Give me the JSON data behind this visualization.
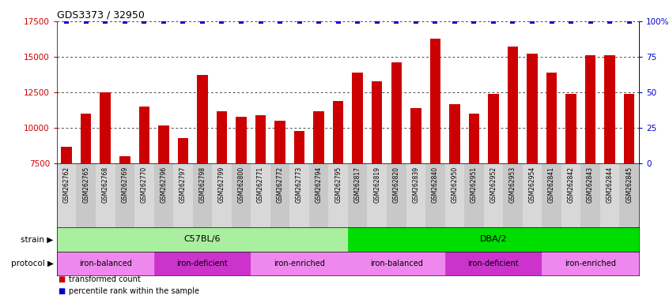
{
  "title": "GDS3373 / 32950",
  "samples": [
    "GSM262762",
    "GSM262765",
    "GSM262768",
    "GSM262769",
    "GSM262770",
    "GSM262796",
    "GSM262797",
    "GSM262798",
    "GSM262799",
    "GSM262800",
    "GSM262771",
    "GSM262772",
    "GSM262773",
    "GSM262794",
    "GSM262795",
    "GSM262817",
    "GSM262819",
    "GSM262820",
    "GSM262839",
    "GSM262840",
    "GSM262950",
    "GSM262951",
    "GSM262952",
    "GSM262953",
    "GSM262954",
    "GSM262841",
    "GSM262842",
    "GSM262843",
    "GSM262844",
    "GSM262845"
  ],
  "bar_values": [
    8700,
    11000,
    12500,
    8000,
    11500,
    10200,
    9300,
    13700,
    11200,
    10800,
    10900,
    10500,
    9800,
    11200,
    11900,
    13900,
    13300,
    14600,
    11400,
    16300,
    11700,
    11000,
    12400,
    15700,
    15200,
    13900,
    12400,
    15100,
    15100,
    12400
  ],
  "bar_color": "#cc0000",
  "percentile_color": "#0000cc",
  "ymin": 7500,
  "ymax": 17500,
  "yticks_left": [
    7500,
    10000,
    12500,
    15000,
    17500
  ],
  "yticks_right": [
    0,
    25,
    50,
    75,
    100
  ],
  "grid_values": [
    10000,
    12500,
    15000,
    17500
  ],
  "strain_groups": [
    {
      "label": "C57BL/6",
      "start": 0,
      "end": 15,
      "color": "#aaeea0"
    },
    {
      "label": "DBA/2",
      "start": 15,
      "end": 30,
      "color": "#00dd00"
    }
  ],
  "protocol_groups": [
    {
      "label": "iron-balanced",
      "start": 0,
      "end": 5,
      "color": "#ee88ee"
    },
    {
      "label": "iron-deficient",
      "start": 5,
      "end": 10,
      "color": "#cc33cc"
    },
    {
      "label": "iron-enriched",
      "start": 10,
      "end": 15,
      "color": "#ee88ee"
    },
    {
      "label": "iron-balanced",
      "start": 15,
      "end": 20,
      "color": "#ee88ee"
    },
    {
      "label": "iron-deficient",
      "start": 20,
      "end": 25,
      "color": "#cc33cc"
    },
    {
      "label": "iron-enriched",
      "start": 25,
      "end": 30,
      "color": "#ee88ee"
    }
  ],
  "strain_label": "strain",
  "protocol_label": "protocol",
  "legend_bar_label": "transformed count",
  "legend_dot_label": "percentile rank within the sample"
}
